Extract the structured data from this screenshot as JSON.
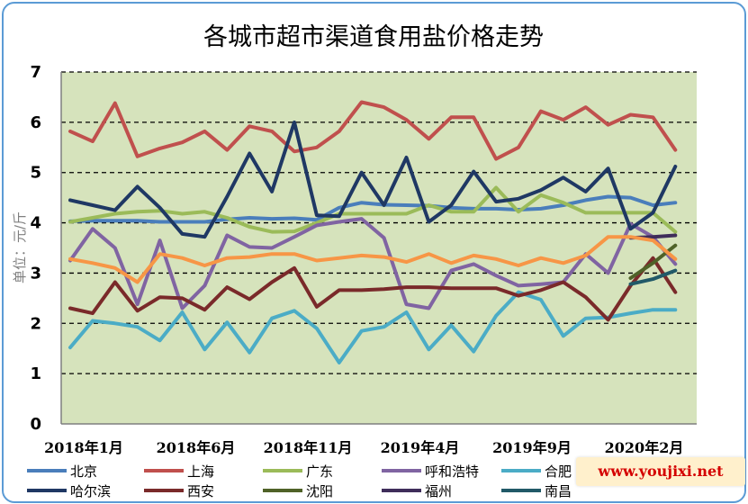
{
  "chart_data": {
    "type": "line",
    "title": "各城市超市渠道食用盐价格走势",
    "ylabel": "单位：元/斤",
    "xlabel": "",
    "ylim": [
      0,
      7
    ],
    "yticks": [
      0,
      1,
      2,
      3,
      4,
      5,
      6,
      7
    ],
    "grid": true,
    "legend": "bottom",
    "x_tick_labels": [
      "2018年1月",
      "2018年6月",
      "2018年11月",
      "2019年4月",
      "2019年9月",
      "2020年2月"
    ],
    "x_tick_index": [
      0,
      5,
      10,
      15,
      20,
      25
    ],
    "series": [
      {
        "name": "北京",
        "color": "#4a7ebb",
        "start": 0,
        "values": [
          4.03,
          4.04,
          4.04,
          4.04,
          4.02,
          4.02,
          4.02,
          4.07,
          4.1,
          4.08,
          4.09,
          4.06,
          4.3,
          4.4,
          4.36,
          4.35,
          4.34,
          4.3,
          4.28,
          4.28,
          4.26,
          4.28,
          4.35,
          4.45,
          4.52,
          4.5,
          4.35,
          4.4
        ]
      },
      {
        "name": "上海",
        "color": "#c0504d",
        "start": 0,
        "values": [
          5.82,
          5.62,
          6.38,
          5.32,
          5.48,
          5.6,
          5.82,
          5.45,
          5.92,
          5.82,
          5.42,
          5.5,
          5.82,
          6.4,
          6.3,
          6.05,
          5.67,
          6.1,
          6.1,
          5.27,
          5.5,
          6.22,
          6.05,
          6.3,
          5.95,
          6.15,
          6.1,
          5.45
        ]
      },
      {
        "name": "广东",
        "color": "#9bbb59",
        "start": 0,
        "values": [
          4.02,
          4.1,
          4.18,
          4.22,
          4.24,
          4.18,
          4.22,
          4.1,
          3.92,
          3.82,
          3.83,
          4.0,
          4.18,
          4.18,
          4.18,
          4.18,
          4.35,
          4.22,
          4.22,
          4.7,
          4.22,
          4.55,
          4.4,
          4.2,
          4.2,
          4.2,
          4.2,
          3.82
        ]
      },
      {
        "name": "呼和浩特",
        "color": "#8064a2",
        "start": 0,
        "values": [
          3.25,
          3.88,
          3.5,
          2.38,
          3.65,
          2.3,
          2.75,
          3.75,
          3.52,
          3.5,
          3.72,
          3.95,
          4.02,
          4.08,
          3.7,
          2.38,
          2.3,
          3.05,
          3.18,
          2.95,
          2.75,
          2.78,
          2.82,
          3.38,
          3.0,
          3.98,
          3.72,
          3.18
        ]
      },
      {
        "name": "合肥",
        "color": "#4bacc6",
        "start": 0,
        "values": [
          1.52,
          2.05,
          2.0,
          1.93,
          1.66,
          2.22,
          1.48,
          2.02,
          1.42,
          2.1,
          2.25,
          1.9,
          1.22,
          1.85,
          1.93,
          2.22,
          1.48,
          1.96,
          1.44,
          2.15,
          2.62,
          2.47,
          1.75,
          2.1,
          2.12,
          2.2,
          2.27,
          2.27
        ]
      },
      {
        "name": "哈尔滨",
        "color": "#1f3864",
        "start": 0,
        "values": [
          4.45,
          4.35,
          4.25,
          4.72,
          4.3,
          3.78,
          3.72,
          4.52,
          5.38,
          4.62,
          6.0,
          4.15,
          4.13,
          5.0,
          4.35,
          5.3,
          4.02,
          4.35,
          5.02,
          4.42,
          4.48,
          4.65,
          4.9,
          4.62,
          5.08,
          3.88,
          4.2,
          5.12
        ]
      },
      {
        "name": "西安",
        "color": "#7a2a2a",
        "start": 0,
        "values": [
          2.3,
          2.2,
          2.82,
          2.25,
          2.52,
          2.5,
          2.27,
          2.72,
          2.48,
          2.82,
          3.1,
          2.33,
          2.66,
          2.66,
          2.68,
          2.72,
          2.72,
          2.7,
          2.7,
          2.7,
          2.55,
          2.66,
          2.82,
          2.52,
          2.07,
          2.75,
          3.3,
          2.62
        ]
      },
      {
        "name": "沈阳",
        "color": "#4f6228",
        "start": 25,
        "values": [
          2.9,
          3.2,
          3.55
        ]
      },
      {
        "name": "福州",
        "color": "#3f2d5a",
        "start": 25,
        "values": [
          3.7,
          3.72,
          3.75
        ]
      },
      {
        "name": "南昌",
        "color": "#215968",
        "start": 25,
        "values": [
          2.78,
          2.88,
          3.05
        ]
      },
      {
        "name": "",
        "color": "#f79646",
        "start": 0,
        "values": [
          3.28,
          3.2,
          3.1,
          2.82,
          3.38,
          3.3,
          3.15,
          3.3,
          3.32,
          3.38,
          3.38,
          3.25,
          3.3,
          3.35,
          3.32,
          3.22,
          3.38,
          3.2,
          3.35,
          3.28,
          3.15,
          3.3,
          3.2,
          3.35,
          3.72,
          3.72,
          3.65,
          3.28
        ]
      }
    ]
  },
  "watermark": "www.youjixi.net"
}
